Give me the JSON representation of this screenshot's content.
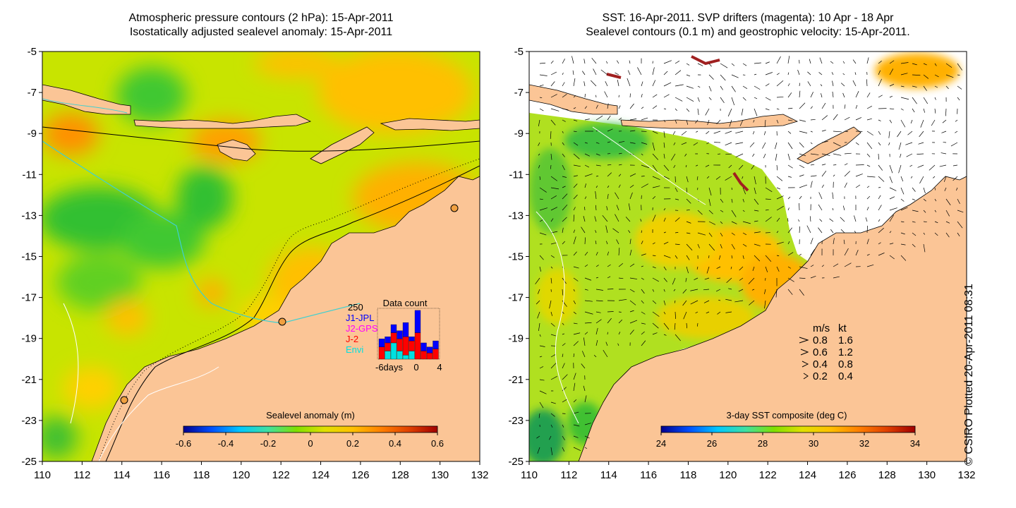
{
  "left_panel": {
    "title_line1": "Atmospheric pressure contours (2 hPa): 15-Apr-2011",
    "title_line2": "Isostatically adjusted sealevel anomaly: 15-Apr-2011",
    "colorbar": {
      "label": "Sealevel anomaly (m)",
      "ticks": [
        "-0.6",
        "-0.4",
        "-0.2",
        "0",
        "0.2",
        "0.4",
        "0.6"
      ],
      "colors": [
        "#00008f",
        "#0050ff",
        "#00c8ff",
        "#40e0a0",
        "#80e000",
        "#e0e000",
        "#ffc000",
        "#ff8000",
        "#e04000",
        "#a00000"
      ]
    },
    "data_count": {
      "title": "Data count",
      "max_label": "250",
      "legend": [
        {
          "label": "J1-JPL",
          "color": "#0000ff"
        },
        {
          "label": "J2-GPS",
          "color": "#ff00ff"
        },
        {
          "label": "J-2",
          "color": "#ff0000"
        },
        {
          "label": "Envi",
          "color": "#00e0e0"
        }
      ],
      "x_labels": [
        "-6days",
        "0",
        "4"
      ],
      "bars": [
        {
          "day": -6,
          "envi": 0,
          "j2": 60,
          "j1": 40
        },
        {
          "day": -5,
          "envi": 40,
          "j2": 40,
          "j1": 30
        },
        {
          "day": -4,
          "envi": 80,
          "j2": 50,
          "j1": 40
        },
        {
          "day": -3,
          "envi": 40,
          "j2": 60,
          "j1": 40
        },
        {
          "day": -2,
          "envi": 20,
          "j2": 90,
          "j1": 70
        },
        {
          "day": -1,
          "envi": 40,
          "j2": 50,
          "j1": 20
        },
        {
          "day": 0,
          "envi": 0,
          "j2": 130,
          "j1": 110
        },
        {
          "day": 1,
          "envi": 0,
          "j2": 40,
          "j1": 40
        },
        {
          "day": 2,
          "envi": 0,
          "j2": 30,
          "j1": 30
        },
        {
          "day": 3,
          "envi": 0,
          "j2": 50,
          "j1": 40
        }
      ]
    }
  },
  "right_panel": {
    "title_line1": "SST: 16-Apr-2011. SVP drifters (magenta): 10 Apr - 18 Apr",
    "title_line2": "Sealevel contours (0.1 m) and geostrophic velocity: 15-Apr-2011.",
    "colorbar": {
      "label": "3-day SST composite (deg C)",
      "ticks": [
        "24",
        "26",
        "28",
        "30",
        "32",
        "34"
      ],
      "colors": [
        "#00008f",
        "#0050ff",
        "#00c8ff",
        "#40e0a0",
        "#80e000",
        "#e0e000",
        "#ffc000",
        "#ff8000",
        "#e04000",
        "#a00000"
      ]
    },
    "velocity_legend": {
      "header_ms": "m/s",
      "header_kt": "kt",
      "rows": [
        {
          "ms": "0.8",
          "kt": "1.6"
        },
        {
          "ms": "0.6",
          "kt": "1.2"
        },
        {
          "ms": "0.4",
          "kt": "0.8"
        },
        {
          "ms": "0.2",
          "kt": "0.4"
        }
      ]
    }
  },
  "axes": {
    "x_ticks": [
      "110",
      "112",
      "114",
      "116",
      "118",
      "120",
      "122",
      "124",
      "126",
      "128",
      "130",
      "132"
    ],
    "y_ticks": [
      "-5",
      "-7",
      "-9",
      "-11",
      "-13",
      "-15",
      "-17",
      "-19",
      "-21",
      "-23",
      "-25"
    ],
    "lon_range": [
      110,
      132
    ],
    "lat_range": [
      -25,
      -5
    ]
  },
  "credit": "© CSIRO Plotted 20-Apr-2011 08:31",
  "colors": {
    "land": "#fbc596",
    "ocean_base": "#c8e400",
    "cyan_contour": "#40d0d0"
  }
}
